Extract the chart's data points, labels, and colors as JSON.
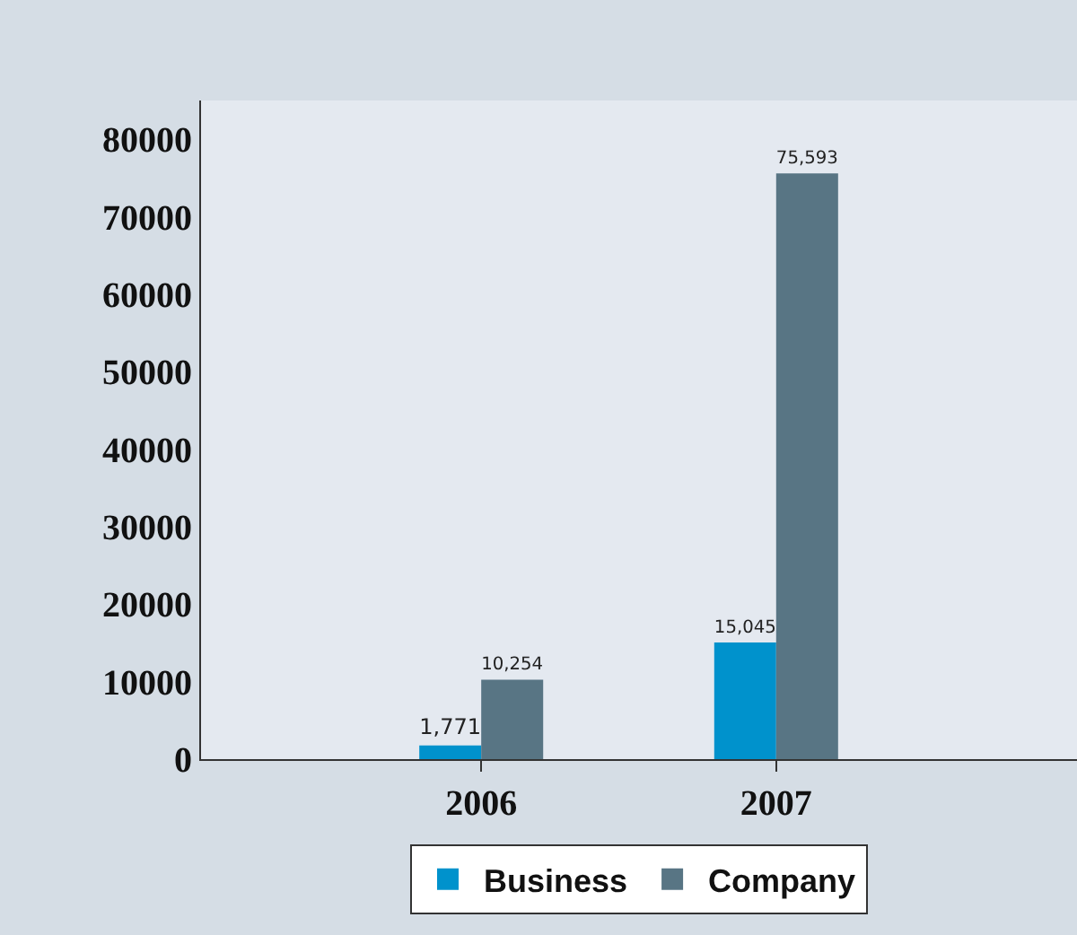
{
  "chart_data": {
    "type": "bar",
    "categories": [
      "2006",
      "2007"
    ],
    "series": [
      {
        "name": "Business",
        "color": "#0092cc",
        "values": [
          1771,
          15045
        ],
        "value_labels": [
          "1,771",
          "15,045"
        ]
      },
      {
        "name": "Company",
        "color": "#587584",
        "values": [
          10254,
          75593
        ],
        "value_labels": [
          "10,254",
          "75,593"
        ]
      }
    ],
    "ylim": [
      0,
      85000
    ],
    "yticks": [
      0,
      10000,
      20000,
      30000,
      40000,
      50000,
      60000,
      70000,
      80000
    ],
    "grid": false,
    "legend": "bottom"
  }
}
